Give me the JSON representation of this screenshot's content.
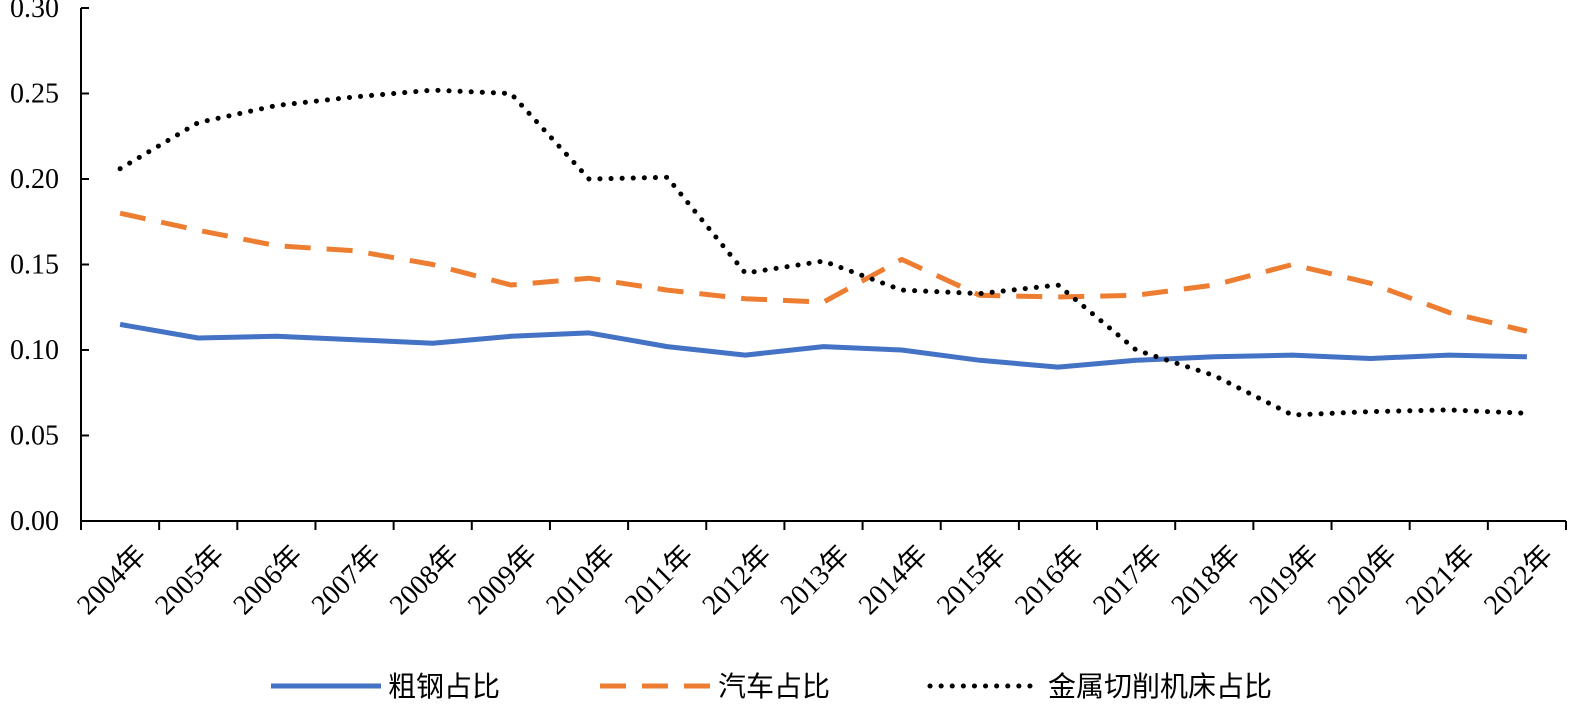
{
  "chart_data": {
    "type": "line",
    "title": "",
    "xlabel": "",
    "ylabel": "",
    "categories": [
      "2004年",
      "2005年",
      "2006年",
      "2007年",
      "2008年",
      "2009年",
      "2010年",
      "2011年",
      "2012年",
      "2013年",
      "2014年",
      "2015年",
      "2016年",
      "2017年",
      "2018年",
      "2019年",
      "2020年",
      "2021年",
      "2022年"
    ],
    "yticks": [
      "0.00",
      "0.05",
      "0.10",
      "0.15",
      "0.20",
      "0.25",
      "0.30"
    ],
    "ylim": [
      0,
      0.3
    ],
    "grid": false,
    "legend_position": "bottom",
    "series": [
      {
        "name": "粗钢占比",
        "color": "#4472C4",
        "style": "solid",
        "values": [
          0.115,
          0.107,
          0.108,
          0.106,
          0.104,
          0.108,
          0.11,
          0.102,
          0.097,
          0.102,
          0.1,
          0.094,
          0.09,
          0.094,
          0.096,
          0.097,
          0.095,
          0.097,
          0.096
        ]
      },
      {
        "name": "汽车占比",
        "color": "#ED7D31",
        "style": "dashed",
        "values": [
          0.18,
          0.17,
          0.161,
          0.158,
          0.15,
          0.138,
          0.142,
          0.135,
          0.13,
          0.128,
          0.153,
          0.132,
          0.131,
          0.132,
          0.138,
          0.15,
          0.139,
          0.122,
          0.111
        ]
      },
      {
        "name": "金属切削机床占比",
        "color": "#000000",
        "style": "dotted",
        "values": [
          0.206,
          0.233,
          0.243,
          0.248,
          0.252,
          0.25,
          0.2,
          0.201,
          0.145,
          0.152,
          0.135,
          0.133,
          0.138,
          0.1,
          0.085,
          0.062,
          0.064,
          0.065,
          0.063
        ]
      }
    ]
  }
}
